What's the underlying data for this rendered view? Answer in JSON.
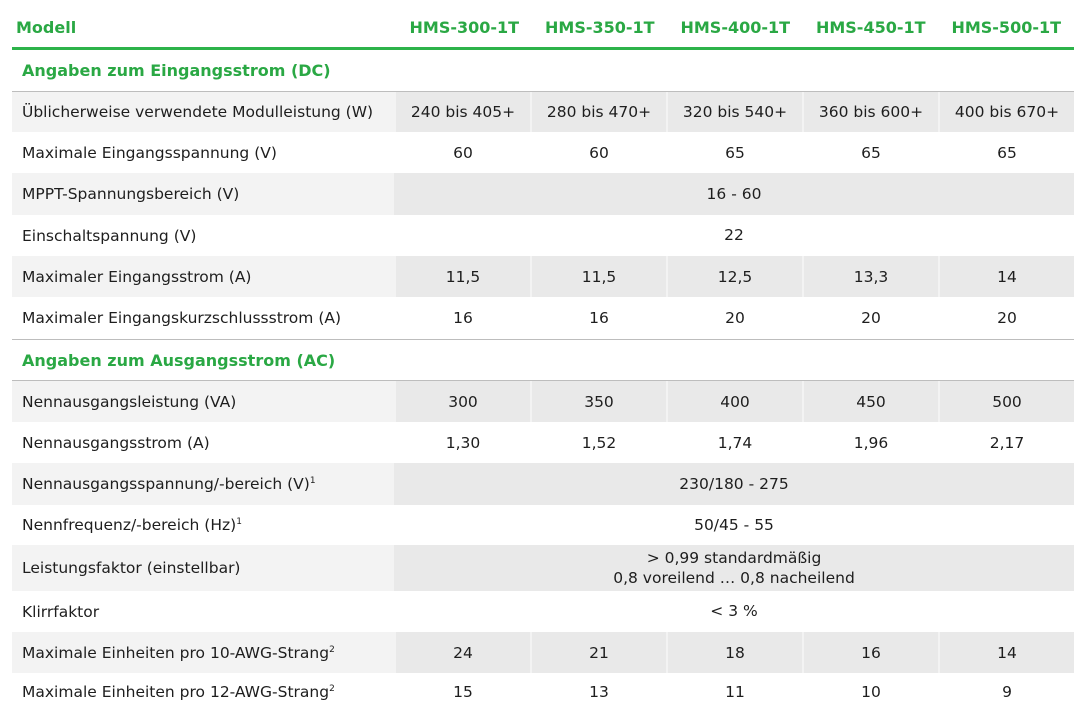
{
  "header": {
    "label": "Modell",
    "models": [
      "HMS-300-1T",
      "HMS-350-1T",
      "HMS-400-1T",
      "HMS-450-1T",
      "HMS-500-1T"
    ]
  },
  "sections": {
    "dc": "Angaben zum Eingangsstrom (DC)",
    "ac": "Angaben zum Ausgangsstrom (AC)"
  },
  "rows": {
    "r1": {
      "label": "Üblicherweise verwendete Modulleistung (W)",
      "values": [
        "240 bis 405+",
        "280 bis 470+",
        "320 bis 540+",
        "360 bis 600+",
        "400 bis 670+"
      ]
    },
    "r2": {
      "label": "Maximale Eingangsspannung (V)",
      "values": [
        "60",
        "60",
        "65",
        "65",
        "65"
      ]
    },
    "r3": {
      "label": "MPPT-Spannungsbereich (V)",
      "merged": "16 - 60"
    },
    "r4": {
      "label": "Einschaltspannung (V)",
      "merged": "22"
    },
    "r5": {
      "label": "Maximaler Eingangsstrom (A)",
      "values": [
        "11,5",
        "11,5",
        "12,5",
        "13,3",
        "14"
      ]
    },
    "r6": {
      "label": "Maximaler Eingangskurzschlussstrom (A)",
      "values": [
        "16",
        "16",
        "20",
        "20",
        "20"
      ]
    },
    "r7": {
      "label": "Nennausgangsleistung (VA)",
      "values": [
        "300",
        "350",
        "400",
        "450",
        "500"
      ]
    },
    "r8": {
      "label": "Nennausgangsstrom (A)",
      "values": [
        "1,30",
        "1,52",
        "1,74",
        "1,96",
        "2,17"
      ]
    },
    "r9": {
      "label": "Nennausgangsspannung/-bereich (V)",
      "sup": "1",
      "merged": "230/180 - 275"
    },
    "r10": {
      "label": "Nennfrequenz/-bereich (Hz)",
      "sup": "1",
      "merged": "50/45 - 55"
    },
    "r11": {
      "label": "Leistungsfaktor (einstellbar)",
      "merged_line1": "> 0,99 standardmäßig",
      "merged_line2": "0,8 voreilend … 0,8 nacheilend"
    },
    "r12": {
      "label": "Klirrfaktor",
      "merged": "< 3 %"
    },
    "r13": {
      "label": "Maximale Einheiten pro 10-AWG-Strang",
      "sup": "2",
      "values": [
        "24",
        "21",
        "18",
        "16",
        "14"
      ]
    },
    "r14": {
      "label": "Maximale Einheiten pro 12-AWG-Strang",
      "sup": "2",
      "values": [
        "15",
        "13",
        "11",
        "10",
        "9"
      ]
    }
  }
}
